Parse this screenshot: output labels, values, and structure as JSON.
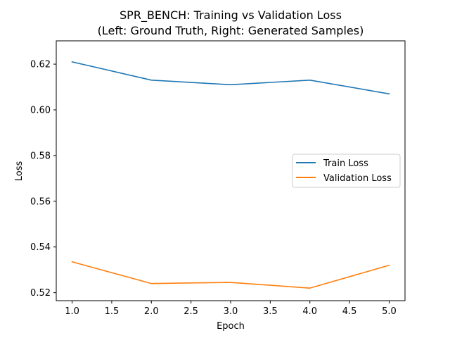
{
  "chart_data": {
    "type": "line",
    "title_line1": "SPR_BENCH: Training vs Validation Loss",
    "title_line2": "(Left: Ground Truth, Right: Generated Samples)",
    "xlabel": "Epoch",
    "ylabel": "Loss",
    "xlim": [
      0.8,
      5.2
    ],
    "ylim": [
      0.5165,
      0.6302
    ],
    "xticks": [
      1.0,
      1.5,
      2.0,
      2.5,
      3.0,
      3.5,
      4.0,
      4.5,
      5.0
    ],
    "xtick_labels": [
      "1.0",
      "1.5",
      "2.0",
      "2.5",
      "3.0",
      "3.5",
      "4.0",
      "4.5",
      "5.0"
    ],
    "yticks": [
      0.52,
      0.54,
      0.56,
      0.58,
      0.6,
      0.62
    ],
    "ytick_labels": [
      "0.52",
      "0.54",
      "0.56",
      "0.58",
      "0.60",
      "0.62"
    ],
    "grid": false,
    "legend_position": "center-right",
    "x": [
      1,
      2,
      3,
      4,
      5
    ],
    "series": [
      {
        "name": "Train Loss",
        "color": "#1f77b4",
        "values": [
          0.621,
          0.613,
          0.611,
          0.613,
          0.607
        ]
      },
      {
        "name": "Validation Loss",
        "color": "#ff7f0e",
        "values": [
          0.5335,
          0.524,
          0.5245,
          0.522,
          0.532
        ]
      }
    ]
  }
}
